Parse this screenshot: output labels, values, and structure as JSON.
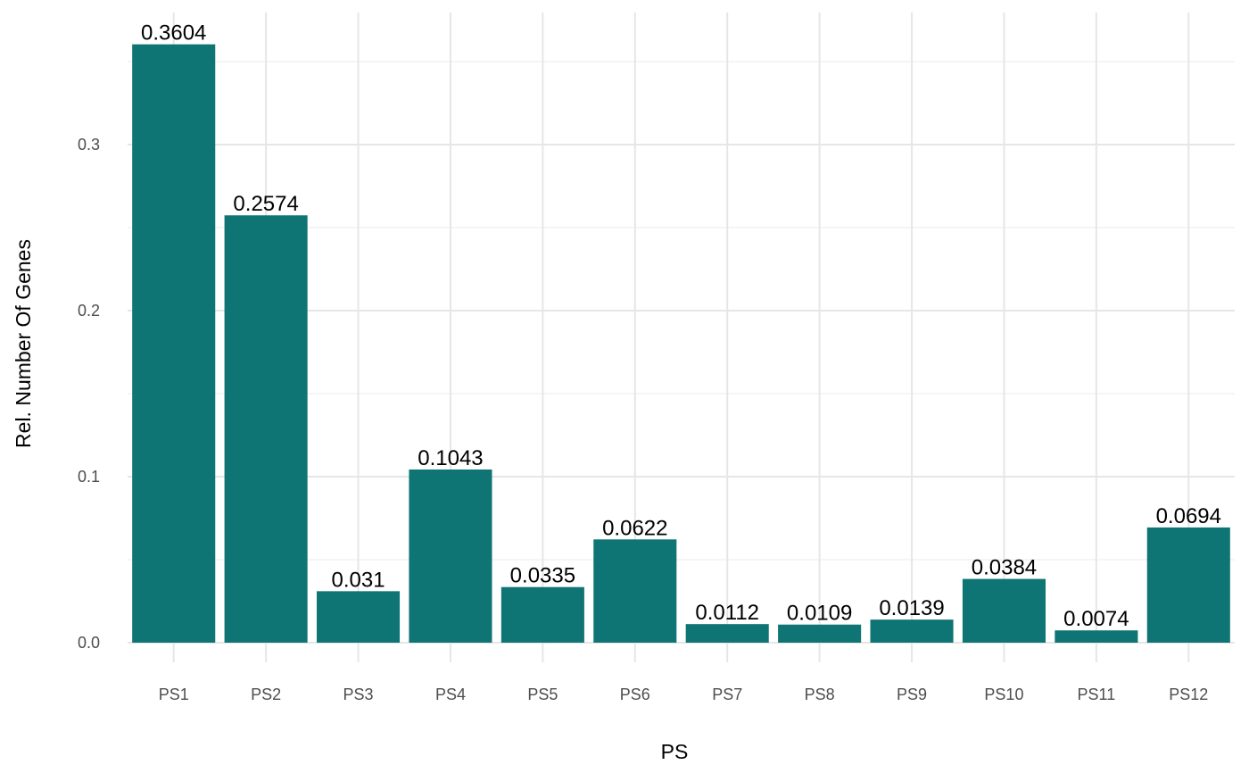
{
  "chart_data": {
    "type": "bar",
    "categories": [
      "PS1",
      "PS2",
      "PS3",
      "PS4",
      "PS5",
      "PS6",
      "PS7",
      "PS8",
      "PS9",
      "PS10",
      "PS11",
      "PS12"
    ],
    "values": [
      0.3604,
      0.2574,
      0.031,
      0.1043,
      0.0335,
      0.0622,
      0.0112,
      0.0109,
      0.0139,
      0.0384,
      0.0074,
      0.0694
    ],
    "value_labels": [
      "0.3604",
      "0.2574",
      "0.031",
      "0.1043",
      "0.0335",
      "0.0622",
      "0.0112",
      "0.0109",
      "0.0139",
      "0.0384",
      "0.0074",
      "0.0694"
    ],
    "title": "",
    "xlabel": "PS",
    "ylabel": "Rel. Number Of  Genes",
    "y_ticks": [
      "0.0",
      "0.1",
      "0.2",
      "0.3"
    ],
    "y_tick_values": [
      0,
      0.1,
      0.2,
      0.3
    ],
    "ylim": [
      0,
      0.36
    ],
    "bar_color": "#0f7574",
    "grid": true,
    "legend": "none"
  }
}
